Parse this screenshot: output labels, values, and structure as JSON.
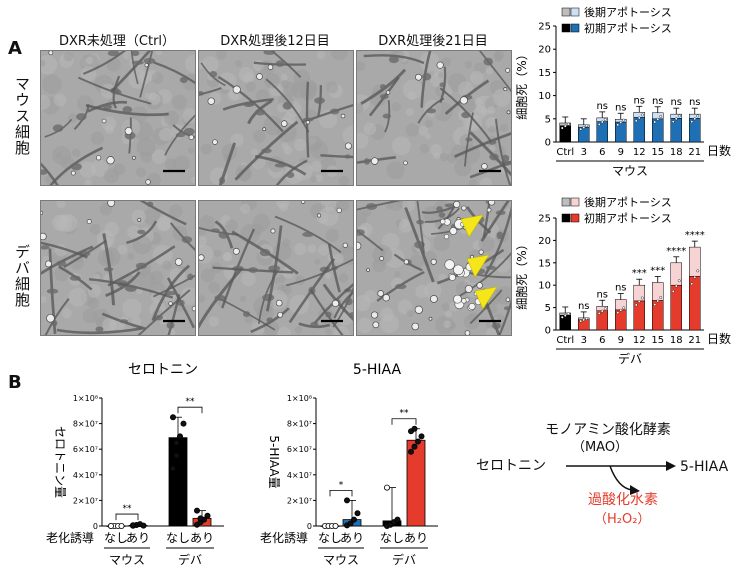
{
  "panel_a": {
    "letter": "A",
    "column_headers": [
      "DXR未処理（Ctrl）",
      "DXR処理後12日目",
      "DXR処理後21日目"
    ],
    "row_headers": [
      "マウス細胞",
      "デバ細胞"
    ]
  },
  "panel_b": {
    "letter": "B",
    "group_labels": [
      "マウス",
      "デバ"
    ],
    "pathway": {
      "enzyme": "モノアミン酸化酵素",
      "enzyme_abbr": "（MAO）",
      "substrate": "セロトニン",
      "product": "5-HIAA",
      "byproduct": "過酸化水素",
      "byproduct_formula": "（H₂O₂）"
    }
  },
  "chart_data": [
    {
      "type": "bar",
      "title": "",
      "xlabel": "日数",
      "ylabel": "細胞死（%）",
      "group_label": "マウス",
      "categories": [
        "Ctrl",
        "3",
        "6",
        "9",
        "12",
        "15",
        "18",
        "21"
      ],
      "ylim": [
        0,
        25
      ],
      "yticks": [
        0,
        5,
        10,
        15,
        20,
        25
      ],
      "series": [
        {
          "name": "初期アポトーシス",
          "values": [
            3.5,
            3.2,
            4.4,
            4.3,
            5.3,
            5.0,
            5.1,
            5.1
          ],
          "color": "#1f6fb5"
        },
        {
          "name": "後期アポトーシス",
          "values": [
            0.6,
            0.5,
            0.8,
            0.6,
            1.1,
            1.3,
            0.9,
            0.9
          ],
          "color": "#cfe0f4"
        }
      ],
      "significance": [
        "",
        "",
        "ns",
        "ns",
        "ns",
        "ns",
        "ns",
        "ns"
      ],
      "legend": "top-right"
    },
    {
      "type": "bar",
      "title": "",
      "xlabel": "日数",
      "ylabel": "細胞死（%）",
      "group_label": "デバ",
      "categories": [
        "Ctrl",
        "3",
        "6",
        "9",
        "12",
        "15",
        "18",
        "21"
      ],
      "ylim": [
        0,
        25
      ],
      "yticks": [
        0,
        5,
        10,
        15,
        20,
        25
      ],
      "series": [
        {
          "name": "初期アポトーシス",
          "values": [
            3.3,
            2.3,
            4.3,
            4.5,
            6.5,
            6.6,
            10.0,
            12.0
          ],
          "color": "#e53b2c"
        },
        {
          "name": "後期アポトーシス",
          "values": [
            0.5,
            0.4,
            1.0,
            2.3,
            3.5,
            4.0,
            5.0,
            6.5
          ],
          "color": "#f7d3d3"
        }
      ],
      "significance": [
        "",
        "ns",
        "ns",
        "ns",
        "***",
        "***",
        "****",
        "****"
      ],
      "legend": "top-right"
    },
    {
      "type": "bar",
      "title": "セロトニン",
      "xlabel": "老化誘導",
      "ylabel": "セロトニン量",
      "categories": [
        "なし",
        "あり",
        "なし",
        "あり"
      ],
      "groups": [
        "マウス",
        "マウス",
        "デバ",
        "デバ"
      ],
      "values": [
        0,
        500000,
        69000000,
        6000000
      ],
      "ylim": [
        0,
        100000000
      ],
      "ytick_labels": [
        "0",
        "2×10⁷",
        "4×10⁷",
        "6×10⁷",
        "8×10⁷",
        "1×10⁸"
      ],
      "colors": [
        "#ffffff",
        "#1f6fb5",
        "#000000",
        "#e53b2c"
      ],
      "points": [
        [
          0,
          0,
          0,
          0,
          0
        ],
        [
          200000,
          800000,
          1500000,
          300000,
          600000
        ],
        [
          45000000,
          55000000,
          70000000,
          80000000,
          85000000,
          65000000
        ],
        [
          1000000,
          3000000,
          5000000,
          8000000,
          12000000,
          6000000
        ]
      ],
      "significance": [
        {
          "pair": [
            0,
            1
          ],
          "label": "**"
        },
        {
          "pair": [
            2,
            3
          ],
          "label": "**"
        }
      ]
    },
    {
      "type": "bar",
      "title": "5-HIAA",
      "xlabel": "老化誘導",
      "ylabel": "5-HIAA量",
      "categories": [
        "なし",
        "あり",
        "なし",
        "あり"
      ],
      "groups": [
        "マウス",
        "マウス",
        "デバ",
        "デバ"
      ],
      "values": [
        0,
        5000000,
        4000000,
        67000000
      ],
      "ylim": [
        0,
        100000000
      ],
      "ytick_labels": [
        "0",
        "2×10⁷",
        "4×10⁷",
        "6×10⁷",
        "8×10⁷",
        "1×10⁸"
      ],
      "colors": [
        "#ffffff",
        "#1f6fb5",
        "#000000",
        "#e53b2c"
      ],
      "points": [
        [
          0,
          0,
          0,
          0
        ],
        [
          500000,
          2000000,
          5000000,
          10000000,
          20000000
        ],
        [
          0,
          1000000,
          3000000,
          5000000,
          30000000
        ],
        [
          58000000,
          62000000,
          66000000,
          70000000,
          74000000,
          76000000
        ]
      ],
      "significance": [
        {
          "pair": [
            0,
            1
          ],
          "label": "*"
        },
        {
          "pair": [
            2,
            3
          ],
          "label": "**"
        }
      ]
    }
  ]
}
